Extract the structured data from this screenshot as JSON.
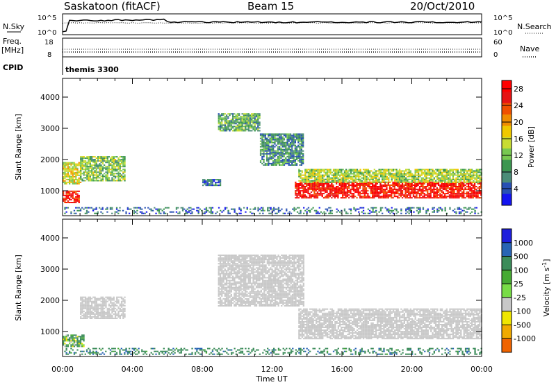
{
  "header": {
    "station": "Saskatoon (fitACF)",
    "beam": "Beam 15",
    "date": "20/Oct/2010"
  },
  "strips": {
    "nsky": {
      "label": "N.Sky",
      "ticks_left": [
        "10^5",
        "10^0"
      ],
      "ticks_right": [
        "10^5",
        "10^0"
      ],
      "right_label": "N.Search"
    },
    "freq": {
      "label_top": "Freq.",
      "label_unit": "[MHz]",
      "ticks_left": [
        "18",
        "8"
      ],
      "ticks_right": [
        "60",
        "0"
      ],
      "right_label": "Nave"
    },
    "cpid": {
      "label": "CPID",
      "value": "themis 3300"
    }
  },
  "colors": {
    "power_scale": [
      "#1414f0",
      "#2850b4",
      "#4b8c78",
      "#3c9650",
      "#78c850",
      "#c8dc32",
      "#f0c800",
      "#f08c00",
      "#f05000",
      "#e61414",
      "#ff0000"
    ],
    "velocity_scale": [
      "#1e1edc",
      "#2864b4",
      "#3c8c5a",
      "#46aa32",
      "#78dc46",
      "#c8c8c8",
      "#f0e600",
      "#f0aa00",
      "#f06400",
      "#ff0000"
    ],
    "ground_scatter": "#c8c8c8"
  },
  "chart_data": [
    {
      "type": "heatmap",
      "panel": "power",
      "ylabel": "Slant Range [km]",
      "xlabel": "Time UT",
      "x_ticks": [
        "00:00",
        "04:00",
        "08:00",
        "12:00",
        "16:00",
        "20:00",
        "00:00"
      ],
      "y_ticks": [
        "1000",
        "2000",
        "3000",
        "4000"
      ],
      "ylim": [
        200,
        4600
      ],
      "xlim_hours": [
        0,
        24
      ],
      "colorbar": {
        "label": "Power [dB]",
        "ticks": [
          "4",
          "8",
          "12",
          "16",
          "20",
          "24",
          "28"
        ],
        "range": [
          0,
          30
        ]
      },
      "regions": [
        {
          "t": [
            0.0,
            0.9
          ],
          "r": [
            600,
            1000
          ],
          "power": 26
        },
        {
          "t": [
            0.0,
            1.0
          ],
          "r": [
            1200,
            1900
          ],
          "power": 16
        },
        {
          "t": [
            1.0,
            3.6
          ],
          "r": [
            1300,
            2100
          ],
          "power": 12
        },
        {
          "t": [
            8.0,
            9.0
          ],
          "r": [
            1150,
            1350
          ],
          "power": 6
        },
        {
          "t": [
            8.9,
            11.3
          ],
          "r": [
            2900,
            3450
          ],
          "power": 10
        },
        {
          "t": [
            11.3,
            13.8
          ],
          "r": [
            1800,
            2800
          ],
          "power": 8
        },
        {
          "t": [
            13.3,
            24.0
          ],
          "r": [
            750,
            1250
          ],
          "power": 27
        },
        {
          "t": [
            13.5,
            24.0
          ],
          "r": [
            1250,
            1700
          ],
          "power": 14
        },
        {
          "t": [
            0.0,
            24.0
          ],
          "r": [
            250,
            450
          ],
          "power": 6
        }
      ]
    },
    {
      "type": "heatmap",
      "panel": "velocity",
      "ylabel": "Slant Range [km]",
      "xlabel": "Time UT",
      "x_ticks": [
        "00:00",
        "04:00",
        "08:00",
        "12:00",
        "16:00",
        "20:00",
        "00:00"
      ],
      "y_ticks": [
        "1000",
        "2000",
        "3000",
        "4000"
      ],
      "ylim": [
        200,
        4600
      ],
      "xlim_hours": [
        0,
        24
      ],
      "colorbar": {
        "label": "Velocity [m s^-1]",
        "ticks": [
          "1000",
          "500",
          "100",
          "25",
          "-25",
          "-100",
          "-500",
          "-1000"
        ]
      },
      "regions": [
        {
          "t": [
            0.0,
            1.2
          ],
          "r": [
            500,
            900
          ],
          "velocity": 100
        },
        {
          "t": [
            1.0,
            3.6
          ],
          "r": [
            1400,
            2100
          ],
          "velocity": 0,
          "ground_scatter": true
        },
        {
          "t": [
            8.9,
            13.8
          ],
          "r": [
            1800,
            3450
          ],
          "velocity": 0,
          "ground_scatter": true
        },
        {
          "t": [
            13.5,
            24.0
          ],
          "r": [
            750,
            1700
          ],
          "velocity": 0,
          "ground_scatter": true
        },
        {
          "t": [
            0.0,
            24.0
          ],
          "r": [
            250,
            450
          ],
          "velocity": 200
        }
      ]
    }
  ]
}
